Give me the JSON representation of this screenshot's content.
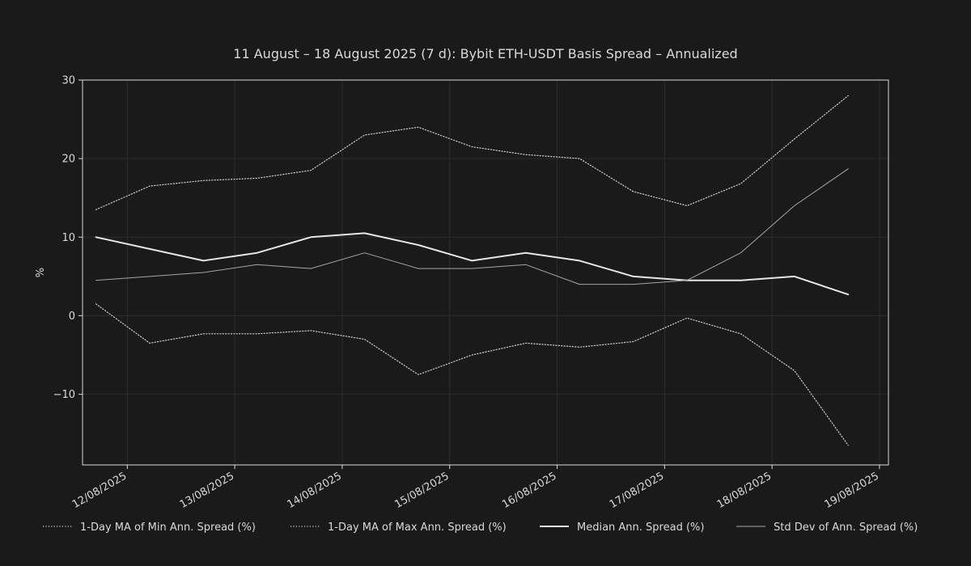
{
  "chart_data": {
    "type": "line",
    "title": "11 August – 18 August 2025 (7 d): Bybit ETH-USDT Basis Spread – Annualized",
    "ylabel": "%",
    "xlabel": "",
    "xlim": [
      "2025-08-11T14:00",
      "2025-08-19T02:00"
    ],
    "ylim": [
      -19,
      30
    ],
    "yticks": [
      -10,
      0,
      10,
      20,
      30
    ],
    "ytick_labels": [
      "−10",
      "0",
      "10",
      "20",
      "30"
    ],
    "xticks": [
      "2025-08-12",
      "2025-08-13",
      "2025-08-14",
      "2025-08-15",
      "2025-08-16",
      "2025-08-17",
      "2025-08-18",
      "2025-08-19"
    ],
    "xtick_labels": [
      "12/08/2025",
      "13/08/2025",
      "14/08/2025",
      "15/08/2025",
      "16/08/2025",
      "17/08/2025",
      "18/08/2025",
      "19/08/2025"
    ],
    "grid": true,
    "legend_position": "bottom",
    "x": [
      "2025-08-11T17:00",
      "2025-08-12T05:00",
      "2025-08-12T17:00",
      "2025-08-13T05:00",
      "2025-08-13T17:00",
      "2025-08-14T05:00",
      "2025-08-14T17:00",
      "2025-08-15T05:00",
      "2025-08-15T17:00",
      "2025-08-16T05:00",
      "2025-08-16T17:00",
      "2025-08-17T05:00",
      "2025-08-17T17:00",
      "2025-08-18T05:00",
      "2025-08-18T17:00"
    ],
    "series": [
      {
        "name": "1-Day MA of Min Ann. Spread (%)",
        "style": "dotted",
        "width": 1.2,
        "color": "#cfcfcf",
        "values": [
          1.5,
          -3.5,
          -2.3,
          -2.3,
          -1.9,
          -3.0,
          -7.5,
          -5.0,
          -3.5,
          -4.0,
          -3.3,
          -0.3,
          -2.3,
          -7.0,
          -16.5
        ]
      },
      {
        "name": "1-Day MA of Max Ann. Spread (%)",
        "style": "dotted",
        "width": 1.2,
        "color": "#cfcfcf",
        "values": [
          13.5,
          16.5,
          17.2,
          17.5,
          18.5,
          23.0,
          24.0,
          21.5,
          20.5,
          20.0,
          15.8,
          14.0,
          16.8,
          22.5,
          28.0
        ]
      },
      {
        "name": "Median Ann. Spread (%)",
        "style": "solid",
        "width": 2,
        "color": "#e6e6e6",
        "values": [
          10.0,
          8.5,
          7.0,
          8.0,
          10.0,
          10.5,
          9.0,
          7.0,
          8.0,
          7.0,
          5.0,
          4.5,
          4.5,
          5.0,
          2.7
        ]
      },
      {
        "name": "Std Dev of Ann. Spread (%)",
        "style": "solid",
        "width": 1,
        "color": "#a6a6a6",
        "values": [
          4.5,
          5.0,
          5.5,
          6.5,
          6.0,
          8.0,
          6.0,
          6.0,
          6.5,
          4.0,
          4.0,
          4.5,
          8.0,
          14.0,
          18.7
        ]
      }
    ]
  }
}
